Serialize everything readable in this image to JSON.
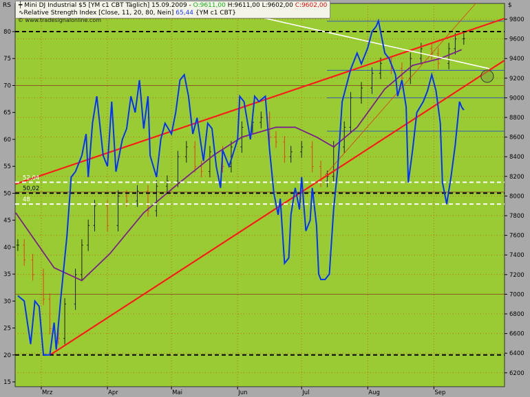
{
  "header": {
    "left_axis_label": "RS",
    "right_axis_label": "$",
    "line1_prefix": "Mini DJ Industrial $5 [YM c1 CBT  Täglich] 15.09.2009 - ",
    "open": "O:9611,00",
    "high": "H:9611,00",
    "low": "L:9602,00",
    "close": "C:9602,00",
    "line2_prefix": "Relative Strength Index [Close, 11, 20, 80, Nein]",
    "rsi_value": "65,44",
    "line2_suffix": "{YM c1 CBT}",
    "watermark": "© www.tradesignalonline.com"
  },
  "colors": {
    "background": "#a9a9a9",
    "plot": "#99cc33",
    "rsi": "#0033ff",
    "ma": "#7a1f8c",
    "trend": "#ff1a1a",
    "up_bar": "#1a1a1a",
    "down_bar": "#e0401a"
  },
  "chart_data": {
    "type": "line",
    "x_ticks": [
      {
        "date": "2009-03-01",
        "label": "Mrz"
      },
      {
        "date": "2009-04-01",
        "label": "Apr"
      },
      {
        "date": "2009-05-01",
        "label": "Mai"
      },
      {
        "date": "2009-06-01",
        "label": "Jun"
      },
      {
        "date": "2009-07-01",
        "label": "Jul"
      },
      {
        "date": "2009-08-01",
        "label": "Aug"
      },
      {
        "date": "2009-09-01",
        "label": "Sep"
      }
    ],
    "left_axis": {
      "label": "RS",
      "ylim": [
        15,
        80
      ],
      "ticks": [
        15,
        20,
        25,
        30,
        35,
        40,
        45,
        50,
        55,
        60,
        65,
        70,
        75,
        80
      ]
    },
    "right_axis": {
      "label": "$",
      "ylim": [
        6200,
        9800
      ],
      "ticks": [
        6200,
        6400,
        6600,
        6800,
        7000,
        7200,
        7400,
        7600,
        7800,
        8000,
        8200,
        8400,
        8600,
        8800,
        9000,
        9200,
        9400,
        9600,
        9800
      ]
    },
    "rsi": [
      [
        "2009-02-18",
        31
      ],
      [
        "2009-02-21",
        30
      ],
      [
        "2009-02-24",
        22
      ],
      [
        "2009-02-26",
        30
      ],
      [
        "2009-02-28",
        29
      ],
      [
        "2009-03-02",
        20
      ],
      [
        "2009-03-05",
        20
      ],
      [
        "2009-03-07",
        26
      ],
      [
        "2009-03-08",
        21
      ],
      [
        "2009-03-10",
        30
      ],
      [
        "2009-03-13",
        42
      ],
      [
        "2009-03-15",
        53
      ],
      [
        "2009-03-17",
        54
      ],
      [
        "2009-03-20",
        57
      ],
      [
        "2009-03-22",
        61
      ],
      [
        "2009-03-23",
        53
      ],
      [
        "2009-03-25",
        63
      ],
      [
        "2009-03-27",
        68
      ],
      [
        "2009-03-30",
        57
      ],
      [
        "2009-04-01",
        55
      ],
      [
        "2009-04-03",
        67
      ],
      [
        "2009-04-05",
        54
      ],
      [
        "2009-04-08",
        60
      ],
      [
        "2009-04-10",
        62
      ],
      [
        "2009-04-12",
        68
      ],
      [
        "2009-04-14",
        65
      ],
      [
        "2009-04-16",
        71
      ],
      [
        "2009-04-18",
        62
      ],
      [
        "2009-04-20",
        68
      ],
      [
        "2009-04-21",
        57
      ],
      [
        "2009-04-24",
        53
      ],
      [
        "2009-04-26",
        60
      ],
      [
        "2009-04-28",
        63
      ],
      [
        "2009-05-01",
        61
      ],
      [
        "2009-05-03",
        65
      ],
      [
        "2009-05-05",
        71
      ],
      [
        "2009-05-07",
        72
      ],
      [
        "2009-05-09",
        68
      ],
      [
        "2009-05-11",
        61
      ],
      [
        "2009-05-13",
        64
      ],
      [
        "2009-05-16",
        56
      ],
      [
        "2009-05-18",
        63
      ],
      [
        "2009-05-20",
        62
      ],
      [
        "2009-05-22",
        55
      ],
      [
        "2009-05-24",
        51
      ],
      [
        "2009-05-25",
        58
      ],
      [
        "2009-05-28",
        55
      ],
      [
        "2009-06-01",
        60
      ],
      [
        "2009-06-02",
        68
      ],
      [
        "2009-06-04",
        67
      ],
      [
        "2009-06-07",
        60
      ],
      [
        "2009-06-09",
        68
      ],
      [
        "2009-06-11",
        67
      ],
      [
        "2009-06-14",
        68
      ],
      [
        "2009-06-16",
        58
      ],
      [
        "2009-06-18",
        50
      ],
      [
        "2009-06-20",
        46
      ],
      [
        "2009-06-21",
        49
      ],
      [
        "2009-06-23",
        37
      ],
      [
        "2009-06-25",
        38
      ],
      [
        "2009-06-26",
        46
      ],
      [
        "2009-06-28",
        51
      ],
      [
        "2009-06-30",
        47
      ],
      [
        "2009-07-01",
        53
      ],
      [
        "2009-07-03",
        43
      ],
      [
        "2009-07-05",
        45
      ],
      [
        "2009-07-06",
        51
      ],
      [
        "2009-07-08",
        44
      ],
      [
        "2009-07-09",
        35
      ],
      [
        "2009-07-10",
        34
      ],
      [
        "2009-07-12",
        34
      ],
      [
        "2009-07-14",
        35
      ],
      [
        "2009-07-16",
        47
      ],
      [
        "2009-07-18",
        55
      ],
      [
        "2009-07-20",
        67
      ],
      [
        "2009-07-22",
        70
      ],
      [
        "2009-07-24",
        73
      ],
      [
        "2009-07-27",
        76
      ],
      [
        "2009-07-29",
        74
      ],
      [
        "2009-08-01",
        77
      ],
      [
        "2009-08-03",
        80
      ],
      [
        "2009-08-05",
        81
      ],
      [
        "2009-08-06",
        82
      ],
      [
        "2009-08-08",
        78
      ],
      [
        "2009-08-09",
        76
      ],
      [
        "2009-08-11",
        75
      ],
      [
        "2009-08-14",
        72
      ],
      [
        "2009-08-15",
        68
      ],
      [
        "2009-08-17",
        71
      ],
      [
        "2009-08-19",
        66
      ],
      [
        "2009-08-20",
        52
      ],
      [
        "2009-08-22",
        58
      ],
      [
        "2009-08-24",
        65
      ],
      [
        "2009-08-27",
        67
      ],
      [
        "2009-08-29",
        69
      ],
      [
        "2009-08-31",
        72
      ],
      [
        "2009-09-02",
        69
      ],
      [
        "2009-09-04",
        63
      ],
      [
        "2009-09-05",
        52
      ],
      [
        "2009-09-07",
        48
      ],
      [
        "2009-09-09",
        53
      ],
      [
        "2009-09-11",
        59
      ],
      [
        "2009-09-13",
        67
      ],
      [
        "2009-09-14",
        66
      ],
      [
        "2009-09-15",
        65.44
      ]
    ],
    "price_close": [
      [
        "2009-02-18",
        7500
      ],
      [
        "2009-02-21",
        7350
      ],
      [
        "2009-02-25",
        7200
      ],
      [
        "2009-03-02",
        6950
      ],
      [
        "2009-03-05",
        6650
      ],
      [
        "2009-03-09",
        6550
      ],
      [
        "2009-03-12",
        6900
      ],
      [
        "2009-03-17",
        7200
      ],
      [
        "2009-03-20",
        7500
      ],
      [
        "2009-03-23",
        7700
      ],
      [
        "2009-03-26",
        7900
      ],
      [
        "2009-04-01",
        7700
      ],
      [
        "2009-04-06",
        8000
      ],
      [
        "2009-04-10",
        7950
      ],
      [
        "2009-04-15",
        8050
      ],
      [
        "2009-04-20",
        7850
      ],
      [
        "2009-04-24",
        8100
      ],
      [
        "2009-04-29",
        8150
      ],
      [
        "2009-05-04",
        8400
      ],
      [
        "2009-05-08",
        8500
      ],
      [
        "2009-05-12",
        8300
      ],
      [
        "2009-05-15",
        8250
      ],
      [
        "2009-05-19",
        8450
      ],
      [
        "2009-05-25",
        8300
      ],
      [
        "2009-05-29",
        8500
      ],
      [
        "2009-06-03",
        8700
      ],
      [
        "2009-06-08",
        8750
      ],
      [
        "2009-06-12",
        8800
      ],
      [
        "2009-06-16",
        8600
      ],
      [
        "2009-06-19",
        8550
      ],
      [
        "2009-06-23",
        8400
      ],
      [
        "2009-06-26",
        8450
      ],
      [
        "2009-07-01",
        8500
      ],
      [
        "2009-07-06",
        8300
      ],
      [
        "2009-07-10",
        8150
      ],
      [
        "2009-07-13",
        8200
      ],
      [
        "2009-07-16",
        8500
      ],
      [
        "2009-07-21",
        8700
      ],
      [
        "2009-07-24",
        9000
      ],
      [
        "2009-07-29",
        9100
      ],
      [
        "2009-08-03",
        9250
      ],
      [
        "2009-08-07",
        9350
      ],
      [
        "2009-08-12",
        9300
      ],
      [
        "2009-08-17",
        9200
      ],
      [
        "2009-08-21",
        9400
      ],
      [
        "2009-08-26",
        9500
      ],
      [
        "2009-08-31",
        9450
      ],
      [
        "2009-09-03",
        9350
      ],
      [
        "2009-09-08",
        9500
      ],
      [
        "2009-09-11",
        9600
      ],
      [
        "2009-09-15",
        9602
      ]
    ],
    "moving_average": [
      [
        "2009-02-17",
        7830
      ],
      [
        "2009-03-07",
        7270
      ],
      [
        "2009-03-20",
        7140
      ],
      [
        "2009-04-02",
        7410
      ],
      [
        "2009-04-18",
        7830
      ],
      [
        "2009-05-05",
        8140
      ],
      [
        "2009-05-21",
        8420
      ],
      [
        "2009-06-03",
        8600
      ],
      [
        "2009-06-19",
        8700
      ],
      [
        "2009-06-28",
        8700
      ],
      [
        "2009-07-08",
        8600
      ],
      [
        "2009-07-16",
        8500
      ],
      [
        "2009-07-27",
        8700
      ],
      [
        "2009-08-09",
        9090
      ],
      [
        "2009-08-22",
        9330
      ],
      [
        "2009-09-04",
        9400
      ],
      [
        "2009-09-14",
        9490
      ]
    ],
    "trend_lines": [
      {
        "color": "#ff1a1a",
        "width": 2.2,
        "from": [
          "2009-02-17",
          8122
        ],
        "to": [
          "2009-10-04",
          9807
        ]
      },
      {
        "color": "#ff1a1a",
        "width": 2.2,
        "from": [
          "2009-03-05",
          6380
        ],
        "to": [
          "2009-10-04",
          9380
        ]
      },
      {
        "color": "#e03a1a",
        "width": 0.8,
        "from": [
          "2009-07-12",
          8213
        ],
        "to": [
          "2009-09-22",
          9996
        ]
      },
      {
        "color": "#ffffff",
        "width": 1.6,
        "from": [
          "2009-05-14",
          9960
        ],
        "to": [
          "2009-09-27",
          9297
        ]
      }
    ],
    "rsi_levels": [
      {
        "value": 80,
        "style": "black-dashed"
      },
      {
        "value": 50.02,
        "style": "black-dashed",
        "label": "50,02"
      },
      {
        "value": 20,
        "style": "black-dashed"
      },
      {
        "value": 52.04,
        "style": "white-dashed",
        "label": "52,04"
      },
      {
        "value": 48,
        "style": "white-dashed",
        "label": "48"
      }
    ],
    "price_levels": [
      9780,
      9280,
      9000,
      8660,
      8040,
      7000
    ],
    "circle_marker": [
      "2009-09-26",
      9220
    ]
  }
}
